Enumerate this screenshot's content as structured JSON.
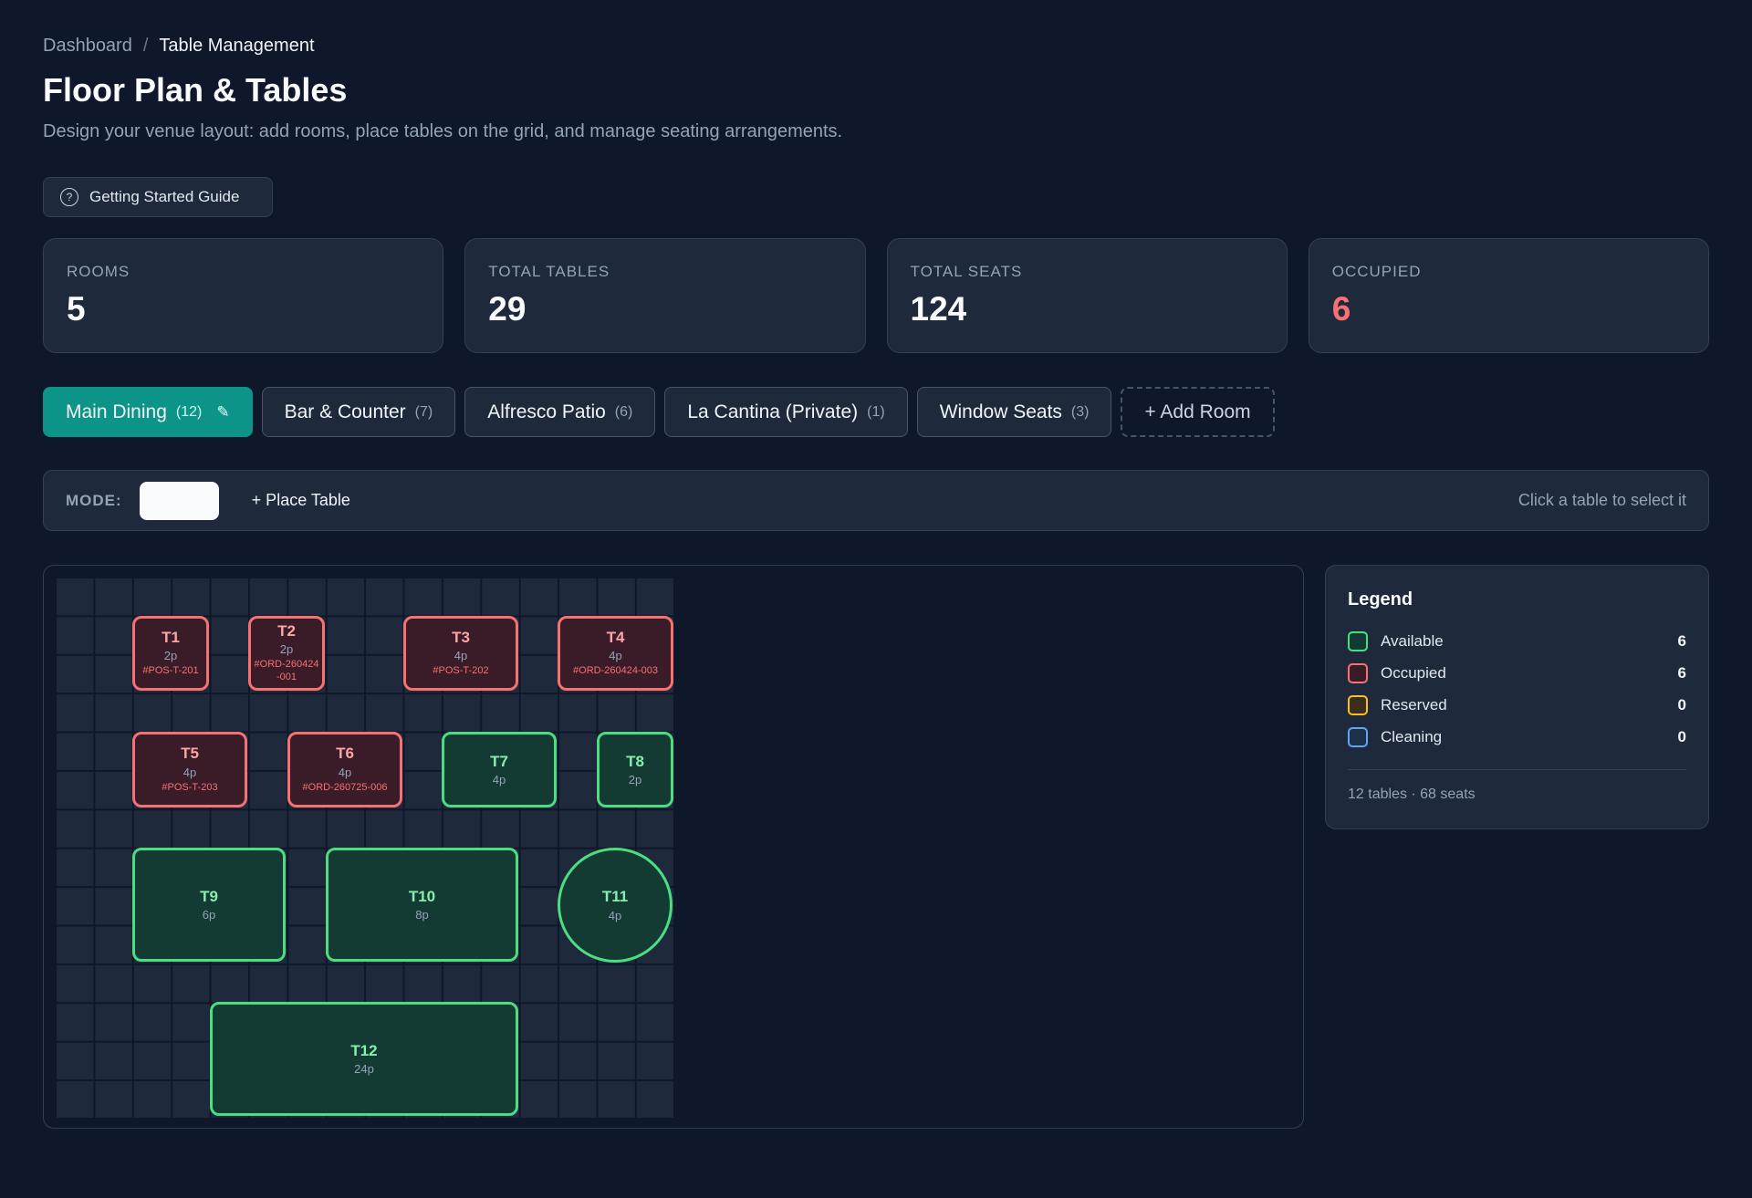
{
  "breadcrumb": {
    "parent": "Dashboard",
    "separator": "/",
    "current": "Table Management"
  },
  "header": {
    "title": "Floor Plan & Tables",
    "subtitle": "Design your venue layout: add rooms, place tables on the grid, and manage seating arrangements."
  },
  "guide_button": {
    "icon": "question-circle-icon",
    "label": "Getting Started Guide"
  },
  "stats": [
    {
      "label": "ROOMS",
      "value": "5"
    },
    {
      "label": "TOTAL TABLES",
      "value": "29"
    },
    {
      "label": "TOTAL SEATS",
      "value": "124"
    },
    {
      "label": "OCCUPIED",
      "value": "6",
      "color": "#f87171"
    }
  ],
  "rooms": [
    {
      "name": "Main Dining",
      "count": "(12)",
      "active": true,
      "icon": "pencil-icon"
    },
    {
      "name": "Bar & Counter",
      "count": "(7)"
    },
    {
      "name": "Alfresco Patio",
      "count": "(6)"
    },
    {
      "name": "La Cantina (Private)",
      "count": "(1)"
    },
    {
      "name": "Window Seats",
      "count": "(3)"
    }
  ],
  "add_room_label": "+ Add Room",
  "modebar": {
    "label": "MODE:",
    "place_table_label": "+ Place Table",
    "hint": "Click a table to select it"
  },
  "tables": [
    {
      "name": "T1",
      "seats": "2p",
      "order": "#POS-T-201",
      "status": "occupied"
    },
    {
      "name": "T2",
      "seats": "2p",
      "order": "#ORD-260424-001",
      "status": "occupied"
    },
    {
      "name": "T3",
      "seats": "4p",
      "order": "#POS-T-202",
      "status": "occupied"
    },
    {
      "name": "T4",
      "seats": "4p",
      "order": "#ORD-260424-003",
      "status": "occupied"
    },
    {
      "name": "T5",
      "seats": "4p",
      "order": "#POS-T-203",
      "status": "occupied"
    },
    {
      "name": "T6",
      "seats": "4p",
      "order": "#ORD-260725-006",
      "status": "occupied"
    },
    {
      "name": "T7",
      "seats": "4p",
      "status": "available"
    },
    {
      "name": "T8",
      "seats": "2p",
      "status": "available"
    },
    {
      "name": "T9",
      "seats": "6p",
      "status": "available"
    },
    {
      "name": "T10",
      "seats": "8p",
      "status": "available"
    },
    {
      "name": "T11",
      "seats": "4p",
      "status": "available",
      "shape": "round"
    },
    {
      "name": "T12",
      "seats": "24p",
      "status": "available"
    }
  ],
  "legend": {
    "title": "Legend",
    "items": [
      {
        "label": "Available",
        "count": "6",
        "color": "#4ade80"
      },
      {
        "label": "Occupied",
        "count": "6",
        "color": "#f87171"
      },
      {
        "label": "Reserved",
        "count": "0",
        "color": "#fbbf24"
      },
      {
        "label": "Cleaning",
        "count": "0",
        "color": "#60a5fa"
      }
    ],
    "summary": "12 tables · 68 seats"
  }
}
